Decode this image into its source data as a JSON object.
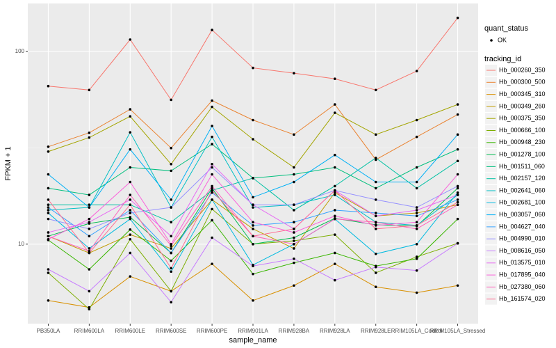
{
  "chart_data": {
    "type": "line",
    "log_y": true,
    "grid": true,
    "x_label": "sample_name",
    "y_label": "FPKM + 1",
    "categories": [
      "PB350LA",
      "RRIM600LA",
      "RRIM600LE",
      "RRIM600SE",
      "RRIM600PE",
      "RRIM901LA",
      "RRIM928BA",
      "RRIM928LA",
      "RRIM928LE",
      "RRIM105LA_Control",
      "RRIM105LA_Stressed"
    ],
    "ylim": [
      3.87,
      177
    ],
    "yticks": [
      10,
      100
    ],
    "point_legend": {
      "title": "quant_status",
      "labels": [
        "OK"
      ]
    },
    "legend_title": "tracking_id",
    "legend_position": "right",
    "series": [
      {
        "name": "Hb_000260_350",
        "color": "#F8766D",
        "values": [
          66,
          63,
          115,
          56,
          129,
          82,
          77,
          72,
          63,
          79,
          149
        ]
      },
      {
        "name": "Hb_000300_500",
        "color": "#EA8331",
        "values": [
          32,
          37.8,
          50,
          31.5,
          55.5,
          44,
          37,
          53,
          27.4,
          36,
          47
        ]
      },
      {
        "name": "Hb_000345_310",
        "color": "#D89000",
        "values": [
          5.1,
          4.7,
          6.8,
          5.7,
          7.9,
          5.1,
          6.1,
          7.9,
          6.0,
          5.6,
          6.1
        ]
      },
      {
        "name": "Hb_000349_260",
        "color": "#C09B00",
        "values": [
          11.0,
          9.0,
          11.2,
          9.5,
          17.0,
          12.0,
          9.5,
          18.5,
          14.0,
          14.5,
          16.0
        ]
      },
      {
        "name": "Hb_000375_350",
        "color": "#A3A500",
        "values": [
          30.2,
          35.7,
          46,
          26,
          51.5,
          35,
          25,
          48,
          37,
          44,
          53
        ]
      },
      {
        "name": "Hb_000666_100",
        "color": "#7CAE00",
        "values": [
          7.1,
          4.6,
          10.6,
          5.7,
          15.2,
          10.0,
          10.4,
          11.2,
          7.1,
          8.6,
          10.1
        ]
      },
      {
        "name": "Hb_000948_230",
        "color": "#39B600",
        "values": [
          10.5,
          7.4,
          11.9,
          8.2,
          13.3,
          7.0,
          8.0,
          9.0,
          7.7,
          8.4,
          13.5
        ]
      },
      {
        "name": "Hb_001278_100",
        "color": "#00BB4E",
        "values": [
          11.0,
          12.8,
          13.8,
          9.0,
          19.5,
          10.0,
          10.8,
          13.6,
          12.6,
          12.4,
          19.5
        ]
      },
      {
        "name": "Hb_001511_060",
        "color": "#00BF7D",
        "values": [
          19.5,
          18.0,
          25.0,
          24.0,
          33.0,
          22.0,
          23.0,
          25.0,
          19.5,
          25.0,
          31.0
        ]
      },
      {
        "name": "Hb_002157_120",
        "color": "#00C1A3",
        "values": [
          16.0,
          16.0,
          16.0,
          13.0,
          19.0,
          22.0,
          15.0,
          20.0,
          28.0,
          19.5,
          27.0
        ]
      },
      {
        "name": "Hb_002641_060",
        "color": "#00BFC4",
        "values": [
          15.0,
          15.5,
          38.0,
          15.5,
          36.0,
          15.5,
          16.0,
          18.0,
          13.0,
          12.5,
          18.0
        ]
      },
      {
        "name": "Hb_002681_100",
        "color": "#00BAE0",
        "values": [
          14.5,
          9.5,
          13.5,
          7.2,
          17.0,
          7.8,
          10.0,
          13.5,
          8.9,
          10.0,
          18.5
        ]
      },
      {
        "name": "Hb_003057_060",
        "color": "#00B0F6",
        "values": [
          23.0,
          15.5,
          31.0,
          17.0,
          41.0,
          17.5,
          21.0,
          29.0,
          21.0,
          21.0,
          37.0
        ]
      },
      {
        "name": "Hb_004627_040",
        "color": "#35A2FF",
        "values": [
          15.5,
          11.0,
          15.0,
          9.0,
          18.5,
          12.5,
          13.0,
          15.0,
          14.5,
          14.0,
          17.0
        ]
      },
      {
        "name": "Hb_004990_010",
        "color": "#9590FF",
        "values": [
          13.5,
          12.0,
          14.5,
          15.5,
          25.0,
          16.0,
          16.0,
          19.0,
          17.0,
          15.5,
          20.0
        ]
      },
      {
        "name": "Hb_008616_050",
        "color": "#C77CFF",
        "values": [
          7.4,
          5.7,
          9.0,
          5.0,
          10.8,
          7.7,
          8.4,
          6.5,
          7.6,
          7.3,
          10.1
        ]
      },
      {
        "name": "Hb_013575_010",
        "color": "#E76BF3",
        "values": [
          11.5,
          13.0,
          17.0,
          11.0,
          26.0,
          16.0,
          12.0,
          19.0,
          14.0,
          15.0,
          18.0
        ]
      },
      {
        "name": "Hb_017895_040",
        "color": "#FA62DB",
        "values": [
          10.6,
          13.5,
          21.0,
          10.0,
          23.0,
          13.0,
          11.5,
          14.0,
          12.5,
          13.0,
          23.0
        ]
      },
      {
        "name": "Hb_027380_060",
        "color": "#FF62BC",
        "values": [
          11.0,
          9.2,
          18.0,
          9.8,
          20.0,
          11.0,
          10.0,
          13.5,
          13.0,
          12.0,
          16.0
        ]
      },
      {
        "name": "Hb_161574_020",
        "color": "#FF6C91",
        "values": [
          17.0,
          9.0,
          16.0,
          7.5,
          19.0,
          11.0,
          12.0,
          19.0,
          12.0,
          12.5,
          16.5
        ]
      }
    ]
  }
}
